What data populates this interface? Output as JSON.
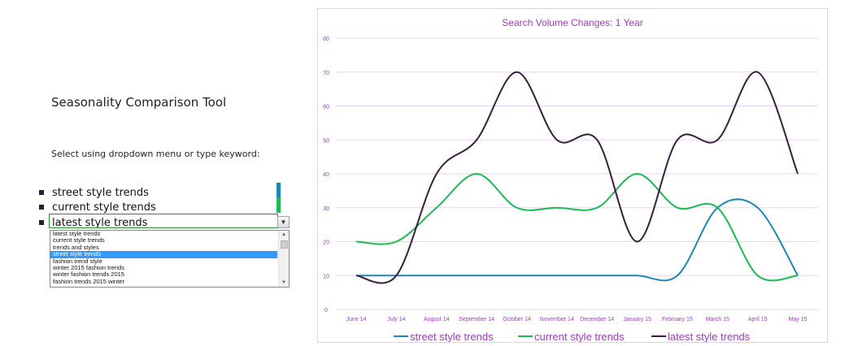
{
  "tool": {
    "title": "Seasonality Comparison Tool",
    "instruction": "Select using dropdown menu or type keyword:",
    "keywords": [
      "street style trends",
      "current style trends",
      "latest style trends"
    ],
    "dropdown_options": [
      "latest style trends",
      "current style trends",
      "trends and styles",
      "street style trends",
      "fashion trend style",
      "winter 2015 fashion trends",
      "winter fashion trends 2015",
      "fashion trends 2015 winter"
    ],
    "dropdown_selected_index": 3
  },
  "colors": {
    "street": "#1f86b8",
    "current": "#1db954",
    "latest": "#3b1e3f",
    "title": "#9b3fb5",
    "gridline": "#ead3f0",
    "bullet": "#2b1d36"
  },
  "chart_data": {
    "type": "line",
    "title": "Search Volume Changes: 1 Year",
    "categories": [
      "June 14",
      "July 14",
      "August 14",
      "September 14",
      "October 14",
      "November 14",
      "December 14",
      "January 15",
      "February 15",
      "March 15",
      "April 15",
      "May 15"
    ],
    "ylim": [
      0,
      80
    ],
    "yticks": [
      0,
      10,
      20,
      30,
      40,
      50,
      60,
      70,
      80
    ],
    "grid": true,
    "smooth": true,
    "legend_position": "bottom",
    "series": [
      {
        "name": "street style trends",
        "values": [
          10,
          10,
          10,
          10,
          10,
          10,
          10,
          10,
          10,
          30,
          30,
          10
        ]
      },
      {
        "name": "current style trends",
        "values": [
          20,
          20,
          30,
          40,
          30,
          30,
          30,
          40,
          30,
          30,
          10,
          10
        ]
      },
      {
        "name": "latest style trends",
        "values": [
          10,
          10,
          40,
          50,
          70,
          50,
          50,
          20,
          50,
          50,
          70,
          40
        ]
      }
    ]
  }
}
